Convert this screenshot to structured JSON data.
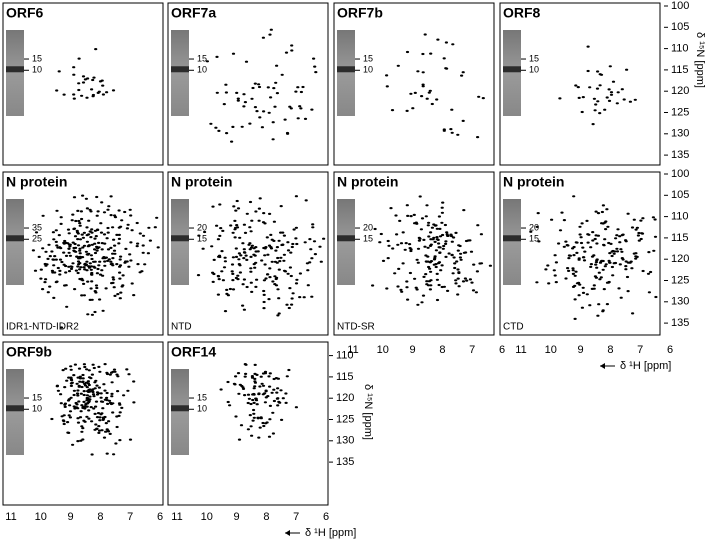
{
  "panels": [
    {
      "title": "ORF6",
      "gel_markers": [
        15,
        10
      ]
    },
    {
      "title": "ORF7a",
      "gel_markers": [
        15,
        10
      ]
    },
    {
      "title": "ORF7b",
      "gel_markers": [
        15,
        10
      ]
    },
    {
      "title": "ORF8",
      "gel_markers": [
        15,
        10
      ]
    },
    {
      "title": "N protein",
      "subtitle": "IDR1-NTD-IDR2",
      "gel_markers": [
        35,
        25
      ]
    },
    {
      "title": "N protein",
      "subtitle": "NTD",
      "gel_markers": [
        20,
        15
      ]
    },
    {
      "title": "N protein",
      "subtitle": "NTD-SR",
      "gel_markers": [
        20,
        15
      ]
    },
    {
      "title": "N protein",
      "subtitle": "CTD",
      "gel_markers": [
        20,
        15
      ]
    },
    {
      "title": "ORF9b",
      "gel_markers": [
        15,
        10
      ]
    },
    {
      "title": "ORF14",
      "gel_markers": [
        15,
        10
      ]
    }
  ],
  "x_axis": {
    "label": "δ ¹H [ppm]",
    "ticks": [
      11,
      10,
      9,
      8,
      7,
      6
    ]
  },
  "y_axis": {
    "label": "δ ¹⁵N [ppm]",
    "ticks": [
      100,
      105,
      110,
      115,
      120,
      125,
      130,
      135
    ]
  }
}
